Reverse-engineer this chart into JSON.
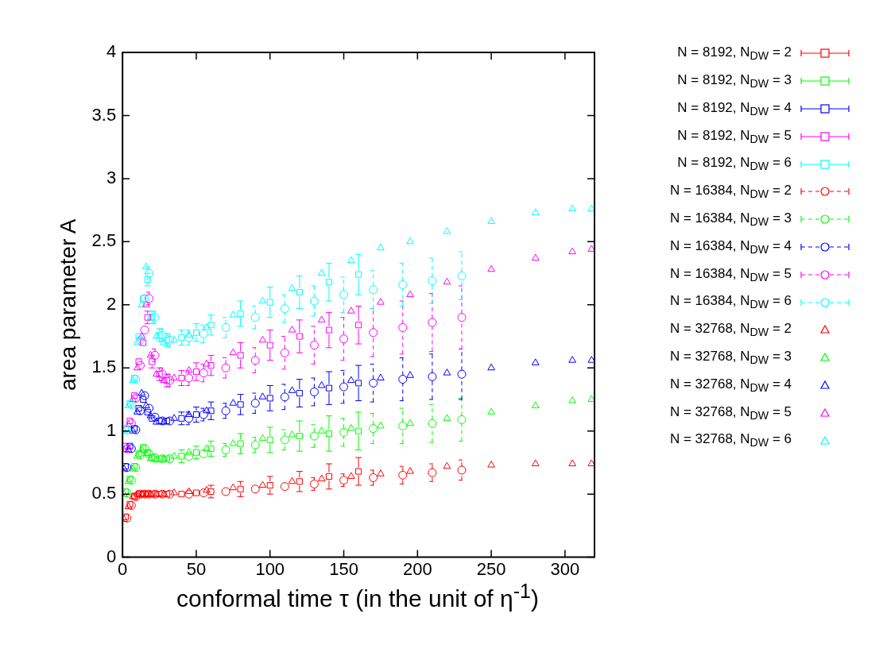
{
  "chart_data": {
    "type": "scatter",
    "xlabel": "conformal time τ (in the unit of η$^{-1}$)",
    "ylabel": "area parameter A",
    "xlim": [
      0,
      320
    ],
    "xticks": [
      0,
      50,
      100,
      150,
      200,
      250,
      300
    ],
    "ylim": [
      0,
      4
    ],
    "yticks": [
      0,
      0.5,
      1,
      1.5,
      2,
      2.5,
      3,
      3.5,
      4
    ],
    "grid": false,
    "legend": "right",
    "series": [
      {
        "name": "N = 8192, N$_{DW}$ = 2",
        "color": "#ff0000",
        "marker": "square",
        "line_style": "solid",
        "x": [
          2,
          5,
          8,
          11,
          14,
          17,
          20,
          25,
          30,
          40,
          50,
          60,
          80,
          100,
          120,
          140,
          160
        ],
        "values": [
          0.32,
          0.42,
          0.48,
          0.5,
          0.5,
          0.5,
          0.5,
          0.5,
          0.5,
          0.5,
          0.51,
          0.52,
          0.54,
          0.57,
          0.6,
          0.64,
          0.68
        ],
        "errors": [
          null,
          null,
          null,
          null,
          null,
          null,
          null,
          null,
          null,
          null,
          null,
          0.05,
          0.06,
          0.07,
          0.08,
          0.1,
          0.11
        ]
      },
      {
        "name": "N = 8192, N$_{DW}$ = 3",
        "color": "#00ff00",
        "marker": "square",
        "line_style": "solid",
        "x": [
          2,
          5,
          8,
          11,
          14,
          17,
          20,
          25,
          30,
          40,
          50,
          60,
          80,
          100,
          120,
          140,
          160
        ],
        "values": [
          0.52,
          0.62,
          0.72,
          0.82,
          0.87,
          0.83,
          0.79,
          0.78,
          0.78,
          0.8,
          0.83,
          0.86,
          0.9,
          0.93,
          0.96,
          0.98,
          1.0
        ],
        "errors": [
          null,
          null,
          null,
          null,
          null,
          null,
          null,
          null,
          null,
          0.05,
          0.05,
          0.06,
          0.08,
          0.1,
          0.12,
          0.14,
          0.15
        ]
      },
      {
        "name": "N = 8192, N$_{DW}$ = 4",
        "color": "#0000ff",
        "marker": "square",
        "line_style": "solid",
        "x": [
          2,
          5,
          8,
          11,
          14,
          17,
          20,
          25,
          30,
          40,
          50,
          60,
          80,
          100,
          120,
          140,
          160
        ],
        "values": [
          0.72,
          0.88,
          1.02,
          1.18,
          1.25,
          1.15,
          1.1,
          1.08,
          1.08,
          1.1,
          1.13,
          1.16,
          1.21,
          1.26,
          1.3,
          1.34,
          1.38
        ],
        "errors": [
          null,
          null,
          null,
          null,
          null,
          null,
          null,
          null,
          null,
          0.05,
          0.06,
          0.07,
          0.08,
          0.1,
          0.11,
          0.13,
          0.14
        ]
      },
      {
        "name": "N = 8192, N$_{DW}$ = 5",
        "color": "#ff00ff",
        "marker": "square",
        "line_style": "solid",
        "x": [
          2,
          5,
          8,
          11,
          14,
          17,
          20,
          25,
          30,
          40,
          50,
          60,
          80,
          100,
          120,
          140,
          160
        ],
        "values": [
          0.88,
          1.08,
          1.28,
          1.55,
          1.7,
          1.9,
          1.55,
          1.45,
          1.4,
          1.42,
          1.47,
          1.52,
          1.6,
          1.68,
          1.75,
          1.8,
          1.84
        ],
        "errors": [
          null,
          null,
          null,
          null,
          null,
          0.05,
          0.05,
          0.05,
          0.05,
          0.06,
          0.07,
          0.08,
          0.1,
          0.12,
          0.13,
          0.14,
          0.15
        ]
      },
      {
        "name": "N = 8192, N$_{DW}$ = 6",
        "color": "#00ffff",
        "marker": "square",
        "line_style": "solid",
        "x": [
          2,
          5,
          8,
          11,
          14,
          17,
          20,
          25,
          30,
          40,
          50,
          60,
          80,
          100,
          120,
          140,
          160
        ],
        "values": [
          1.02,
          1.22,
          1.42,
          1.75,
          2.05,
          2.2,
          1.9,
          1.76,
          1.72,
          1.74,
          1.78,
          1.84,
          1.93,
          2.02,
          2.1,
          2.18,
          2.24
        ],
        "errors": [
          null,
          null,
          null,
          null,
          null,
          0.05,
          0.05,
          0.05,
          0.05,
          0.06,
          0.07,
          0.08,
          0.1,
          0.12,
          0.13,
          0.15,
          0.16
        ]
      },
      {
        "name": "N = 16384, N$_{DW}$ = 2",
        "color": "#ff0000",
        "marker": "circle",
        "line_style": "dashed",
        "x": [
          3,
          6,
          9,
          12,
          15,
          18,
          22,
          27,
          32,
          45,
          55,
          70,
          90,
          110,
          130,
          150,
          170,
          190,
          210,
          230
        ],
        "values": [
          0.31,
          0.41,
          0.48,
          0.5,
          0.5,
          0.5,
          0.5,
          0.5,
          0.5,
          0.5,
          0.51,
          0.52,
          0.54,
          0.56,
          0.58,
          0.61,
          0.63,
          0.65,
          0.67,
          0.69
        ],
        "errors": [
          null,
          null,
          null,
          null,
          null,
          null,
          null,
          null,
          null,
          null,
          null,
          null,
          null,
          null,
          0.05,
          0.05,
          0.06,
          0.07,
          0.07,
          0.08
        ]
      },
      {
        "name": "N = 16384, N$_{DW}$ = 3",
        "color": "#00ff00",
        "marker": "circle",
        "line_style": "dashed",
        "x": [
          3,
          6,
          9,
          12,
          15,
          18,
          22,
          27,
          32,
          45,
          55,
          70,
          90,
          110,
          130,
          150,
          170,
          190,
          210,
          230
        ],
        "values": [
          0.51,
          0.61,
          0.71,
          0.81,
          0.86,
          0.82,
          0.79,
          0.78,
          0.78,
          0.8,
          0.82,
          0.85,
          0.89,
          0.93,
          0.96,
          0.99,
          1.02,
          1.04,
          1.06,
          1.09
        ],
        "errors": [
          null,
          null,
          null,
          null,
          null,
          null,
          null,
          null,
          null,
          null,
          null,
          0.05,
          0.06,
          0.08,
          0.09,
          0.11,
          0.12,
          0.14,
          0.15,
          0.17
        ]
      },
      {
        "name": "N = 16384, N$_{DW}$ = 4",
        "color": "#0000ff",
        "marker": "circle",
        "line_style": "dashed",
        "x": [
          3,
          6,
          9,
          12,
          15,
          18,
          22,
          27,
          32,
          45,
          55,
          70,
          90,
          110,
          130,
          150,
          170,
          190,
          210,
          230
        ],
        "values": [
          0.71,
          0.86,
          1.01,
          1.16,
          1.28,
          1.18,
          1.11,
          1.08,
          1.08,
          1.1,
          1.13,
          1.16,
          1.22,
          1.27,
          1.31,
          1.35,
          1.38,
          1.41,
          1.43,
          1.45
        ],
        "errors": [
          null,
          null,
          null,
          null,
          null,
          null,
          null,
          null,
          null,
          0.05,
          0.05,
          0.06,
          0.08,
          0.1,
          0.11,
          0.13,
          0.15,
          0.17,
          0.18,
          0.2
        ]
      },
      {
        "name": "N = 16384, N$_{DW}$ = 5",
        "color": "#ff00ff",
        "marker": "circle",
        "line_style": "dashed",
        "x": [
          3,
          6,
          9,
          12,
          15,
          18,
          22,
          27,
          32,
          45,
          55,
          70,
          90,
          110,
          130,
          150,
          170,
          190,
          210,
          230
        ],
        "values": [
          0.86,
          1.06,
          1.26,
          1.52,
          1.8,
          2.05,
          1.6,
          1.45,
          1.4,
          1.42,
          1.46,
          1.5,
          1.56,
          1.62,
          1.68,
          1.73,
          1.78,
          1.82,
          1.86,
          1.9
        ],
        "errors": [
          null,
          null,
          null,
          null,
          null,
          0.05,
          0.05,
          0.05,
          0.05,
          0.06,
          0.07,
          0.08,
          0.1,
          0.13,
          0.15,
          0.17,
          0.19,
          0.21,
          0.23,
          0.25
        ]
      },
      {
        "name": "N = 16384, N$_{DW}$ = 6",
        "color": "#00ffff",
        "marker": "circle",
        "line_style": "dashed",
        "x": [
          3,
          6,
          9,
          12,
          15,
          18,
          22,
          27,
          32,
          45,
          55,
          70,
          90,
          110,
          130,
          150,
          170,
          190,
          210,
          230
        ],
        "values": [
          1.01,
          1.21,
          1.41,
          1.72,
          2.05,
          2.25,
          1.9,
          1.76,
          1.72,
          1.74,
          1.77,
          1.82,
          1.9,
          1.97,
          2.03,
          2.08,
          2.12,
          2.16,
          2.19,
          2.23
        ],
        "errors": [
          null,
          null,
          null,
          null,
          null,
          0.05,
          0.05,
          0.05,
          0.05,
          0.06,
          0.07,
          0.08,
          0.09,
          0.11,
          0.12,
          0.14,
          0.15,
          0.17,
          0.18,
          0.19
        ]
      },
      {
        "name": "N = 32768, N$_{DW}$ = 2",
        "color": "#ff0000",
        "marker": "triangle",
        "x": [
          1,
          4,
          7,
          10,
          13,
          16,
          19,
          23,
          28,
          35,
          45,
          57,
          75,
          95,
          115,
          135,
          155,
          175,
          195,
          220,
          250,
          280,
          305,
          318
        ],
        "values": [
          0.3,
          0.4,
          0.48,
          0.5,
          0.5,
          0.5,
          0.5,
          0.5,
          0.5,
          0.51,
          0.52,
          0.53,
          0.55,
          0.57,
          0.6,
          0.62,
          0.64,
          0.66,
          0.68,
          0.72,
          0.73,
          0.74,
          0.74,
          0.74
        ]
      },
      {
        "name": "N = 32768, N$_{DW}$ = 3",
        "color": "#00ff00",
        "marker": "triangle",
        "x": [
          1,
          4,
          7,
          10,
          13,
          16,
          19,
          23,
          28,
          35,
          45,
          57,
          75,
          95,
          115,
          135,
          155,
          175,
          195,
          220,
          250,
          280,
          305,
          318
        ],
        "values": [
          0.5,
          0.6,
          0.7,
          0.8,
          0.85,
          0.82,
          0.78,
          0.77,
          0.78,
          0.8,
          0.83,
          0.86,
          0.9,
          0.94,
          0.97,
          1.0,
          1.02,
          1.04,
          1.06,
          1.1,
          1.15,
          1.2,
          1.24,
          1.25
        ]
      },
      {
        "name": "N = 32768, N$_{DW}$ = 4",
        "color": "#0000ff",
        "marker": "triangle",
        "x": [
          1,
          4,
          7,
          10,
          13,
          16,
          19,
          23,
          28,
          35,
          45,
          57,
          75,
          95,
          115,
          135,
          155,
          175,
          195,
          220,
          250,
          280,
          305,
          318
        ],
        "values": [
          0.7,
          0.85,
          1.0,
          1.15,
          1.3,
          1.2,
          1.12,
          1.07,
          1.07,
          1.1,
          1.13,
          1.16,
          1.22,
          1.27,
          1.32,
          1.36,
          1.4,
          1.42,
          1.44,
          1.46,
          1.5,
          1.54,
          1.56,
          1.56
        ]
      },
      {
        "name": "N = 32768, N$_{DW}$ = 5",
        "color": "#ff00ff",
        "marker": "triangle",
        "x": [
          1,
          4,
          7,
          10,
          13,
          16,
          19,
          23,
          28,
          35,
          45,
          57,
          75,
          95,
          115,
          135,
          155,
          175,
          195,
          220,
          250,
          280,
          305,
          318
        ],
        "values": [
          0.85,
          1.05,
          1.25,
          1.5,
          1.75,
          2.0,
          1.6,
          1.45,
          1.4,
          1.42,
          1.48,
          1.53,
          1.62,
          1.72,
          1.8,
          1.88,
          1.95,
          2.02,
          2.08,
          2.18,
          2.28,
          2.37,
          2.42,
          2.44
        ]
      },
      {
        "name": "N = 32768, N$_{DW}$ = 6",
        "color": "#00ffff",
        "marker": "triangle",
        "x": [
          1,
          4,
          7,
          10,
          13,
          16,
          19,
          23,
          28,
          35,
          45,
          57,
          75,
          95,
          115,
          135,
          155,
          175,
          195,
          220,
          250,
          280,
          305,
          318
        ],
        "values": [
          1.0,
          1.2,
          1.4,
          1.7,
          2.0,
          2.3,
          1.9,
          1.75,
          1.7,
          1.72,
          1.76,
          1.82,
          1.92,
          2.03,
          2.13,
          2.25,
          2.35,
          2.45,
          2.5,
          2.58,
          2.66,
          2.73,
          2.76,
          2.76
        ]
      }
    ]
  }
}
